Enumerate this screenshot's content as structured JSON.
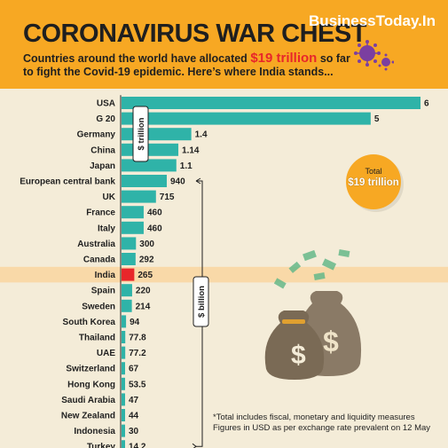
{
  "header": {
    "title": "CORONAVIRUS WAR CHEST",
    "brand": "BusinessToday.In",
    "subtitle_before": "Countries around the world have allocated",
    "subtitle_highlight": "$19 trillion",
    "subtitle_after": "so far to fight the Covid-19 epidemic. Here’s where India stands..."
  },
  "total": {
    "label": "Total",
    "value": "$19 trillion"
  },
  "footnote": {
    "line1": "*Total includes fiscal, monetary and liquidity measures",
    "line2": "Figures in USD as per exchange rate prevalent on 12 May"
  },
  "colors": {
    "orange": "#f7a823",
    "bar": "#2fb3a8",
    "highlight": "#e8262a",
    "background": "#f4ecd8",
    "india_row": "#f9d9a8"
  },
  "chart_data": {
    "type": "bar",
    "orientation": "horizontal",
    "unit_annotations": [
      "$ trillion",
      "$ billion"
    ],
    "groups": [
      {
        "unit": "$ trillion",
        "categories": [
          "USA",
          "G 20",
          "Germany",
          "China",
          "Japan"
        ],
        "values": [
          6,
          5,
          1.4,
          1.14,
          1.1
        ],
        "labels": [
          "6",
          "5",
          "1.4",
          "1.14",
          "1.1"
        ]
      },
      {
        "unit": "$ billion",
        "categories": [
          "European central bank",
          "UK",
          "France",
          "Italy",
          "Australia",
          "Canada",
          "India",
          "Spain",
          "Sweden",
          "South Korea",
          "Thailand",
          "UAE",
          "Switzerland",
          "Hong Kong",
          "Saudi Arabia",
          "New Zealand",
          "Indonesia",
          "Turkey"
        ],
        "values": [
          940,
          715,
          460,
          460,
          300,
          292,
          265,
          220,
          214,
          94,
          77.8,
          77.2,
          67,
          53.5,
          47,
          44,
          30,
          14.2
        ],
        "labels": [
          "940",
          "715",
          "460",
          "460",
          "300",
          "292",
          "265",
          "220",
          "214",
          "94",
          "77.8",
          "77.2",
          "67",
          "53.5",
          "47",
          "44",
          "30",
          "14.2"
        ]
      }
    ],
    "highlight": "India"
  }
}
